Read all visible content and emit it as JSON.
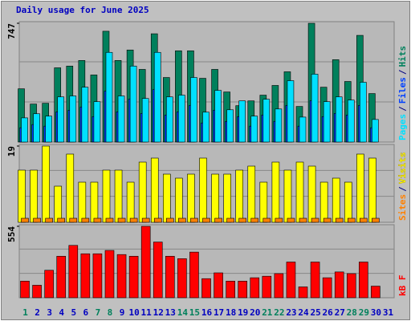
{
  "chart_data": [
    {
      "type": "bar",
      "title": "Daily usage for June 2025",
      "categories": [
        "1",
        "2",
        "3",
        "4",
        "5",
        "6",
        "7",
        "8",
        "9",
        "10",
        "11",
        "12",
        "13",
        "14",
        "15",
        "16",
        "17",
        "18",
        "19",
        "20",
        "21",
        "22",
        "23",
        "24",
        "25",
        "26",
        "27",
        "28",
        "29",
        "30",
        "31"
      ],
      "weekends": [
        0,
        6,
        7,
        13,
        14,
        20,
        21,
        27,
        28
      ],
      "weekend_color": "#00805c",
      "weekday_color": "#0000c0",
      "legend_separator": "/",
      "ylim": [
        0,
        747
      ],
      "yticks": [
        747
      ],
      "series": [
        {
          "name": "Hits",
          "color": "#00805c",
          "values": [
            335,
            239,
            244,
            467,
            478,
            513,
            422,
            697,
            513,
            579,
            457,
            681,
            406,
            574,
            574,
            401,
            457,
            315,
            229,
            259,
            295,
            356,
            442,
            224,
            747,
            345,
            518,
            381,
            671,
            305,
            null
          ]
        },
        {
          "name": "Files",
          "color": "#0040ff",
          "values": [
            90,
            110,
            100,
            190,
            200,
            220,
            160,
            320,
            190,
            270,
            180,
            330,
            170,
            190,
            230,
            120,
            200,
            130,
            160,
            100,
            170,
            130,
            230,
            100,
            260,
            160,
            180,
            170,
            230,
            90,
            null
          ]
        },
        {
          "name": "Pages",
          "color": "#00e0ff",
          "values": [
            152,
            178,
            163,
            284,
            290,
            345,
            254,
            564,
            290,
            478,
            274,
            564,
            284,
            295,
            406,
            188,
            325,
            203,
            259,
            163,
            269,
            208,
            386,
            157,
            427,
            254,
            284,
            264,
            376,
            142,
            null
          ]
        }
      ],
      "legend_order": [
        2,
        1,
        0
      ]
    },
    {
      "type": "bar",
      "ylim": [
        0,
        19
      ],
      "yticks": [
        19
      ],
      "legend_separator": "/",
      "series": [
        {
          "name": "Visits",
          "color": "#ffff00",
          "values": [
            13,
            13,
            19,
            9,
            17,
            10,
            10,
            13,
            13,
            10,
            15,
            16,
            12,
            11,
            12,
            16,
            12,
            12,
            13,
            14,
            10,
            15,
            13,
            15,
            14,
            10,
            11,
            10,
            17,
            16,
            null
          ]
        },
        {
          "name": "Sites",
          "color": "#ff8000",
          "values": [
            1,
            1,
            1,
            1,
            1,
            1,
            1,
            1,
            1,
            1,
            1,
            1,
            1,
            1,
            1,
            1,
            1,
            1,
            1,
            1,
            1,
            1,
            1,
            1,
            1,
            1,
            1,
            1,
            1,
            1,
            null
          ]
        }
      ],
      "legend_order": [
        1,
        0
      ]
    },
    {
      "type": "bar",
      "ylim": [
        0,
        554
      ],
      "yticks": [
        554
      ],
      "legend_separator": "/",
      "series": [
        {
          "name": "kB F",
          "color": "#ff0000",
          "values": [
            129,
            97,
            213,
            322,
            406,
            341,
            341,
            367,
            335,
            322,
            554,
            432,
            322,
            303,
            354,
            148,
            193,
            129,
            129,
            155,
            167,
            187,
            277,
            84,
            277,
            155,
            200,
            187,
            277,
            90,
            null
          ]
        }
      ],
      "legend_order": [
        0
      ]
    }
  ]
}
